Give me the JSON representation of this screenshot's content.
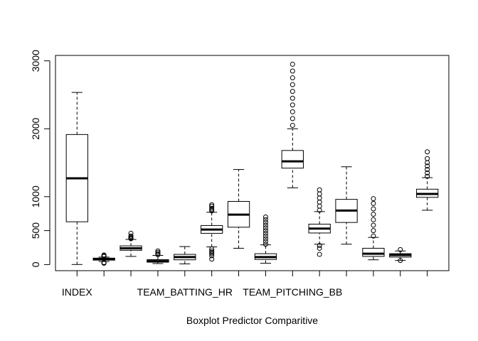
{
  "chart_data": {
    "type": "box",
    "title": "",
    "xlabel": "Boxplot Predictor Comparitive",
    "ylabel": "",
    "ylim": [
      -90,
      3080
    ],
    "yticks": [
      0,
      500,
      1000,
      2000,
      3000
    ],
    "grid": false,
    "legend": "none",
    "shown_category_labels": [
      "INDEX",
      "TEAM_BATTING_HR",
      "TEAM_PITCHING_BB"
    ],
    "boxes": [
      {
        "label": "INDEX",
        "whisker_low": 1,
        "q1": 630,
        "median": 1270,
        "q3": 1915,
        "whisker_high": 2535,
        "outliers": []
      },
      {
        "label": "",
        "whisker_low": 45,
        "q1": 65,
        "median": 80,
        "q3": 95,
        "whisker_high": 110,
        "outliers": [
          20,
          25,
          30,
          120,
          130,
          140
        ]
      },
      {
        "label": "",
        "whisker_low": 120,
        "q1": 210,
        "median": 240,
        "q3": 275,
        "whisker_high": 370,
        "outliers": [
          380,
          390,
          405,
          420,
          460
        ]
      },
      {
        "label": "",
        "whisker_low": 15,
        "q1": 35,
        "median": 50,
        "q3": 72,
        "whisker_high": 135,
        "outliers": [
          145,
          160,
          180,
          200
        ]
      },
      {
        "label": "TEAM_BATTING_HR",
        "whisker_low": 10,
        "q1": 70,
        "median": 110,
        "q3": 150,
        "whisker_high": 265,
        "outliers": []
      },
      {
        "label": "",
        "whisker_low": 260,
        "q1": 460,
        "median": 515,
        "q3": 575,
        "whisker_high": 770,
        "outliers": [
          80,
          130,
          160,
          180,
          200,
          230,
          790,
          810,
          830,
          860,
          880
        ]
      },
      {
        "label": "",
        "whisker_low": 240,
        "q1": 550,
        "median": 735,
        "q3": 930,
        "whisker_high": 1400,
        "outliers": []
      },
      {
        "label": "",
        "whisker_low": 20,
        "q1": 75,
        "median": 110,
        "q3": 160,
        "whisker_high": 290,
        "outliers": [
          300,
          340,
          380,
          420,
          460,
          500,
          540,
          580,
          620,
          660,
          700
        ]
      },
      {
        "label": "TEAM_PITCHING_BB",
        "whisker_low": 1130,
        "q1": 1420,
        "median": 1520,
        "q3": 1680,
        "whisker_high": 2000,
        "outliers": [
          2050,
          2150,
          2250,
          2350,
          2450,
          2550,
          2650,
          2750,
          2850,
          2950
        ]
      },
      {
        "label": "",
        "whisker_low": 300,
        "q1": 465,
        "median": 530,
        "q3": 595,
        "whisker_high": 780,
        "outliers": [
          150,
          240,
          280,
          800,
          860,
          920,
          980,
          1040,
          1100
        ]
      },
      {
        "label": "",
        "whisker_low": 300,
        "q1": 620,
        "median": 795,
        "q3": 960,
        "whisker_high": 1440,
        "outliers": []
      },
      {
        "label": "",
        "whisker_low": 70,
        "q1": 120,
        "median": 160,
        "q3": 240,
        "whisker_high": 400,
        "outliers": [
          420,
          500,
          580,
          660,
          740,
          820,
          900,
          970
        ]
      },
      {
        "label": "",
        "whisker_low": 60,
        "q1": 110,
        "median": 140,
        "q3": 160,
        "whisker_high": 200,
        "outliers": [
          60,
          220
        ]
      },
      {
        "label": "",
        "whisker_low": 800,
        "q1": 990,
        "median": 1040,
        "q3": 1110,
        "whisker_high": 1280,
        "outliers": [
          1300,
          1350,
          1400,
          1450,
          1500,
          1560,
          1660
        ]
      }
    ]
  }
}
